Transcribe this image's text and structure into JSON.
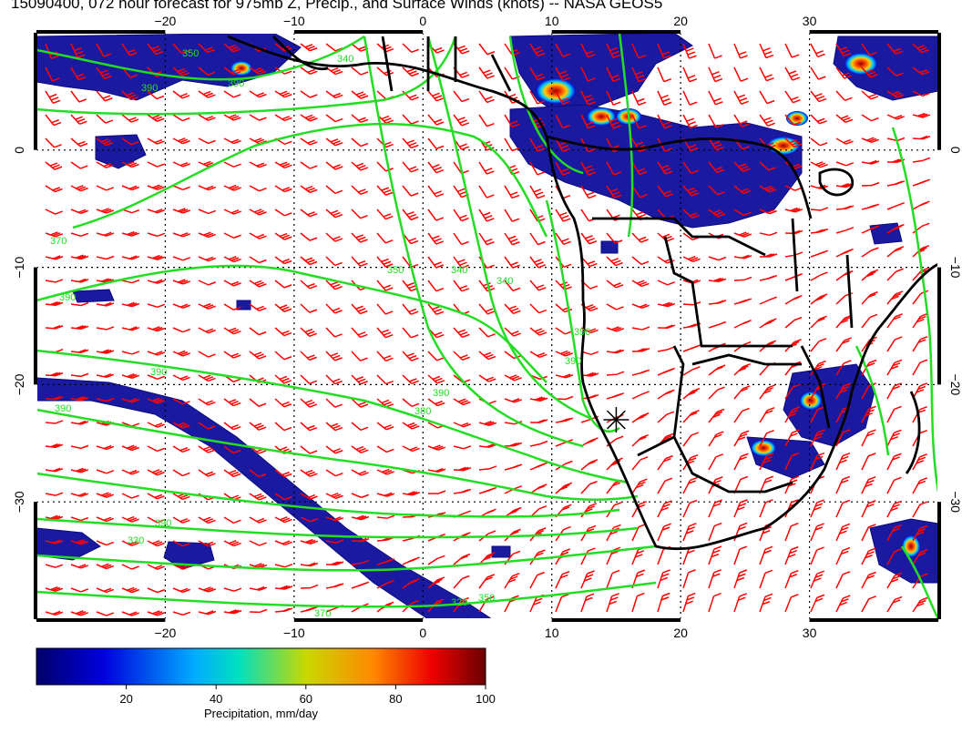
{
  "title": "15090400, 072 hour forecast for 975mb Z, Precip., and Surface Winds (knots) -- NASA GEOS5",
  "map": {
    "lon_range": [
      -30,
      40
    ],
    "lat_range": [
      -40,
      10
    ],
    "lon_ticks": [
      -20,
      -10,
      0,
      10,
      20,
      30
    ],
    "lat_ticks": [
      0,
      -10,
      -20,
      -30
    ],
    "lon_tick_labels": [
      "−20",
      "−10",
      "0",
      "10",
      "20",
      "30"
    ],
    "lat_tick_labels": [
      "0",
      "−10",
      "−20",
      "−30"
    ],
    "gridlines": true,
    "marker": {
      "lon": 15,
      "lat": -23,
      "symbol": "asterisk"
    }
  },
  "contours": {
    "color": "#22dd22",
    "labels": [
      "350",
      "340",
      "390",
      "390",
      "370",
      "390",
      "390",
      "390",
      "350",
      "340",
      "340",
      "390",
      "390",
      "390",
      "380",
      "390",
      "330",
      "320",
      "370",
      "350"
    ]
  },
  "colorbar": {
    "ticks": [
      20,
      40,
      60,
      80,
      100
    ],
    "tick_labels": [
      "20",
      "40",
      "60",
      "80",
      "100"
    ],
    "range": [
      0,
      100
    ],
    "label": "Precipitation, mm/day",
    "colors": [
      "#00008b",
      "#0000ff",
      "#00ccff",
      "#00ffcc",
      "#ccee00",
      "#ff8800",
      "#ff0000",
      "#6b0000"
    ]
  },
  "wind_barb_color": "#ff0000",
  "coastline_color": "#000000"
}
